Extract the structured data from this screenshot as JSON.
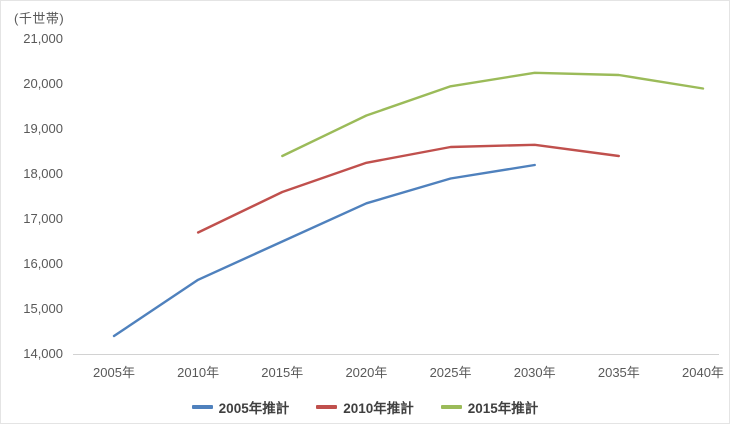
{
  "chart_data": {
    "type": "line",
    "title": "",
    "unit_label": "(千世帯)",
    "xlabel": "",
    "ylabel": "(千世帯)",
    "ylim": [
      14000,
      21000
    ],
    "grid": false,
    "legend_position": "bottom",
    "x_years": [
      2005,
      2010,
      2015,
      2020,
      2025,
      2030,
      2035,
      2040
    ],
    "x_tick_labels": [
      "2005年",
      "2010年",
      "2015年",
      "2020年",
      "2025年",
      "2030年",
      "2035年",
      "2040年"
    ],
    "y_ticks": [
      {
        "value": 14000,
        "label": "14,000"
      },
      {
        "value": 15000,
        "label": "15,000"
      },
      {
        "value": 16000,
        "label": "16,000"
      },
      {
        "value": 17000,
        "label": "17,000"
      },
      {
        "value": 18000,
        "label": "18,000"
      },
      {
        "value": 19000,
        "label": "19,000"
      },
      {
        "value": 20000,
        "label": "20,000"
      },
      {
        "value": 21000,
        "label": "21,000"
      }
    ],
    "series": [
      {
        "name": "2005年推計",
        "color": "#4F81BD",
        "x": [
          2005,
          2010,
          2015,
          2020,
          2025,
          2030
        ],
        "values": [
          14400,
          15650,
          16500,
          17350,
          17900,
          18200
        ]
      },
      {
        "name": "2010年推計",
        "color": "#C0504D",
        "x": [
          2010,
          2015,
          2020,
          2025,
          2030,
          2035
        ],
        "values": [
          16700,
          17600,
          18250,
          18600,
          18650,
          18400
        ]
      },
      {
        "name": "2015年推計",
        "color": "#9BBB59",
        "x": [
          2015,
          2020,
          2025,
          2030,
          2035,
          2040
        ],
        "values": [
          18400,
          19300,
          19950,
          20250,
          20200,
          19900
        ]
      }
    ],
    "axis_line_color": "#d2d2d2",
    "tick_text_color": "#595959",
    "legend_text_color": "#3f3f3f"
  }
}
